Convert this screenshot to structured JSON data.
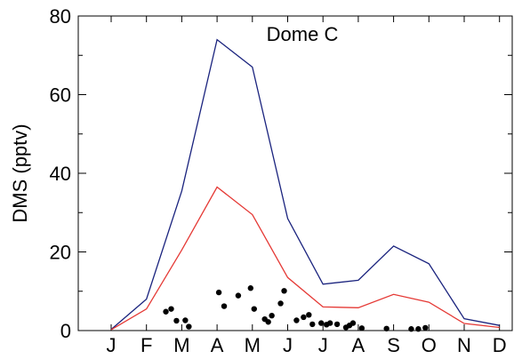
{
  "chart_data": {
    "type": "line",
    "title": "Dome C",
    "xlabel": "",
    "ylabel": "DMS (pptv)",
    "ylim": [
      0,
      80
    ],
    "yticks": [
      0,
      20,
      40,
      60,
      80
    ],
    "categories": [
      "J",
      "F",
      "M",
      "A",
      "M",
      "J",
      "J",
      "A",
      "S",
      "O",
      "N",
      "D"
    ],
    "grid": false,
    "series": [
      {
        "type": "line",
        "color": "#1a237e",
        "values": [
          0.3,
          8,
          35.5,
          74,
          67,
          28.5,
          11.8,
          12.8,
          21.5,
          17,
          3,
          1.3
        ]
      },
      {
        "type": "line",
        "color": "#e53935",
        "values": [
          0.2,
          5.5,
          20.5,
          36.5,
          29.5,
          13.5,
          6,
          5.8,
          9.2,
          7.2,
          1.8,
          0.8
        ]
      },
      {
        "type": "scatter",
        "color": "#000000",
        "points": [
          [
            1.55,
            4.8
          ],
          [
            1.7,
            5.5
          ],
          [
            1.85,
            2.5
          ],
          [
            2.1,
            2.6
          ],
          [
            2.2,
            1.0
          ],
          [
            3.05,
            9.7
          ],
          [
            3.2,
            6.2
          ],
          [
            3.6,
            8.9
          ],
          [
            3.95,
            10.8
          ],
          [
            4.05,
            5.5
          ],
          [
            4.35,
            2.9
          ],
          [
            4.45,
            2.2
          ],
          [
            4.55,
            3.8
          ],
          [
            4.8,
            6.9
          ],
          [
            4.9,
            10.1
          ],
          [
            5.25,
            2.6
          ],
          [
            5.45,
            3.4
          ],
          [
            5.6,
            4.0
          ],
          [
            5.7,
            1.6
          ],
          [
            5.95,
            1.9
          ],
          [
            6.1,
            1.5
          ],
          [
            6.2,
            1.9
          ],
          [
            6.4,
            1.6
          ],
          [
            6.65,
            0.8
          ],
          [
            6.75,
            1.3
          ],
          [
            6.85,
            1.9
          ],
          [
            7.1,
            0.6
          ],
          [
            7.8,
            0.5
          ],
          [
            8.5,
            0.4
          ],
          [
            8.7,
            0.4
          ],
          [
            8.9,
            0.7
          ]
        ]
      }
    ]
  }
}
